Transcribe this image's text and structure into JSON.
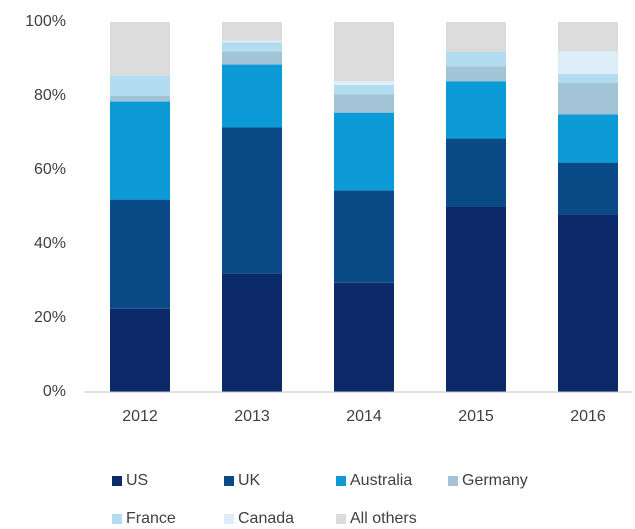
{
  "chart_data": {
    "type": "stacked_bar",
    "categories": [
      "2012",
      "2013",
      "2014",
      "2015",
      "2016"
    ],
    "series": [
      {
        "name": "US",
        "color": "#0c2a6a",
        "values": [
          22.5,
          32,
          29.5,
          50,
          48
        ]
      },
      {
        "name": "UK",
        "color": "#0a4a86",
        "values": [
          29.5,
          39.5,
          25,
          18.5,
          14
        ]
      },
      {
        "name": "Australia",
        "color": "#0d9bd8",
        "values": [
          26.5,
          17,
          21,
          15.5,
          13
        ]
      },
      {
        "name": "Germany",
        "color": "#a3c3d6",
        "values": [
          1.5,
          3.5,
          5,
          4,
          8.5
        ]
      },
      {
        "name": "France",
        "color": "#b2dcef",
        "values": [
          5.5,
          2.5,
          2.5,
          4,
          2.5
        ]
      },
      {
        "name": "Canada",
        "color": "#deeef8",
        "values": [
          0,
          0.5,
          1,
          0,
          6
        ]
      },
      {
        "name": "All others",
        "color": "#dcdcdc",
        "values": [
          14.5,
          5,
          16,
          8,
          8
        ]
      }
    ],
    "ylim": [
      0,
      100
    ],
    "yticks": [
      {
        "value": 0,
        "label": "0%"
      },
      {
        "value": 20,
        "label": "20%"
      },
      {
        "value": 40,
        "label": "40%"
      },
      {
        "value": 60,
        "label": "60%"
      },
      {
        "value": 80,
        "label": "80%"
      },
      {
        "value": 100,
        "label": "100%"
      }
    ],
    "legend": "bottom"
  }
}
